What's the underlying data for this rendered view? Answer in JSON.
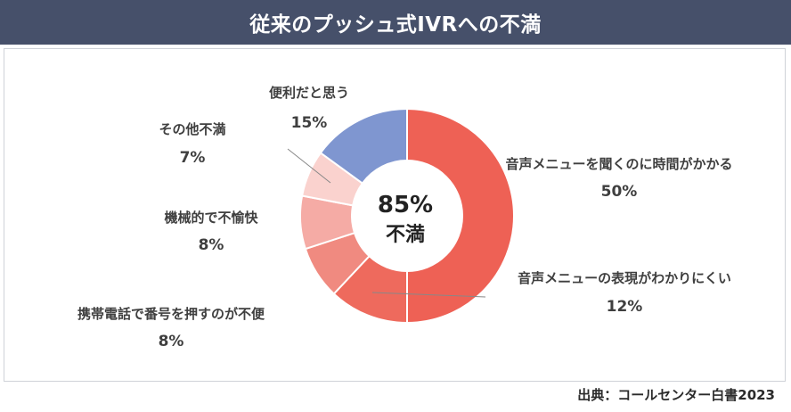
{
  "chart_data": {
    "type": "pie",
    "title": "従来のプッシュ式IVRへの不満",
    "center_value": "85%",
    "center_label": "不満",
    "slices": [
      {
        "label": "音声メニューを聞くのに時間がかかる",
        "value": 50,
        "value_text": "50%",
        "color": "#ee6155"
      },
      {
        "label": "音声メニューの表現がわかりにくい",
        "value": 12,
        "value_text": "12%",
        "color": "#ee6a5d"
      },
      {
        "label": "携帯電話で番号を押すのが不便",
        "value": 8,
        "value_text": "8%",
        "color": "#f08a80"
      },
      {
        "label": "機械的で不愉快",
        "value": 8,
        "value_text": "8%",
        "color": "#f5aba5"
      },
      {
        "label": "その他不満",
        "value": 7,
        "value_text": "7%",
        "color": "#fad2ce"
      },
      {
        "label": "便利だと思う",
        "value": 15,
        "value_text": "15%",
        "color": "#7f96d0"
      }
    ]
  },
  "source": "出典：コールセンター白書2023"
}
